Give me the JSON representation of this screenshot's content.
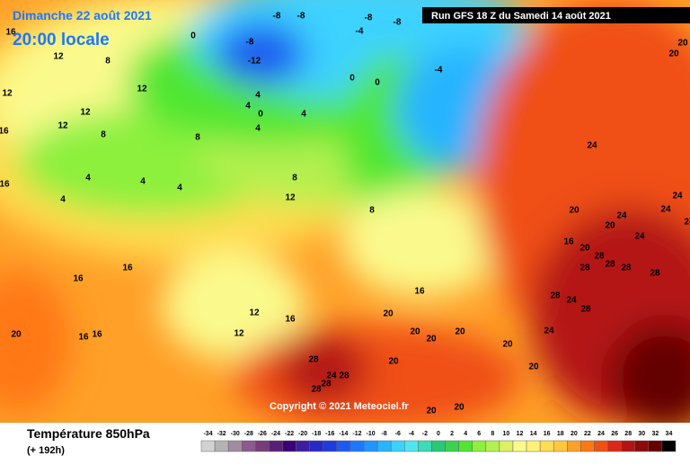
{
  "header": {
    "date": "Dimanche 22 août 2021",
    "time": "20:00 locale",
    "run": "Run GFS 18 Z du Samedi 14 août 2021"
  },
  "copyright": "Copyright © 2021 Meteociel.fr",
  "legend": {
    "title": "Température 850hPa",
    "lead": "(+ 192h)",
    "steps": [
      {
        "value": -34,
        "color": "#d2d2d2"
      },
      {
        "value": -32,
        "color": "#b4b4b4"
      },
      {
        "value": -30,
        "color": "#a08ca0"
      },
      {
        "value": -28,
        "color": "#8c5a8c"
      },
      {
        "value": -26,
        "color": "#783c78"
      },
      {
        "value": -24,
        "color": "#5a1e78"
      },
      {
        "value": -22,
        "color": "#3c0078"
      },
      {
        "value": -20,
        "color": "#3c1ea0"
      },
      {
        "value": -18,
        "color": "#2828c8"
      },
      {
        "value": -16,
        "color": "#1e3cdc"
      },
      {
        "value": -14,
        "color": "#1e5af0"
      },
      {
        "value": -12,
        "color": "#1e78ff"
      },
      {
        "value": -10,
        "color": "#1e96ff"
      },
      {
        "value": -8,
        "color": "#28b4ff"
      },
      {
        "value": -6,
        "color": "#3cd2ff"
      },
      {
        "value": -4,
        "color": "#50e6f0"
      },
      {
        "value": -2,
        "color": "#3cdcb4"
      },
      {
        "value": 0,
        "color": "#28c878"
      },
      {
        "value": 2,
        "color": "#3cd250"
      },
      {
        "value": 4,
        "color": "#50e632"
      },
      {
        "value": 6,
        "color": "#8cf03c"
      },
      {
        "value": 8,
        "color": "#b4f050"
      },
      {
        "value": 10,
        "color": "#dcf064"
      },
      {
        "value": 12,
        "color": "#fafa8c"
      },
      {
        "value": 14,
        "color": "#fff078"
      },
      {
        "value": 16,
        "color": "#ffdc50"
      },
      {
        "value": 18,
        "color": "#ffc83c"
      },
      {
        "value": 20,
        "color": "#ffa028"
      },
      {
        "value": 22,
        "color": "#ff7814"
      },
      {
        "value": 24,
        "color": "#f05014"
      },
      {
        "value": 26,
        "color": "#dc2814"
      },
      {
        "value": 28,
        "color": "#b41414"
      },
      {
        "value": 30,
        "color": "#8c0a0a"
      },
      {
        "value": 32,
        "color": "#640000"
      },
      {
        "value": 34,
        "color": "#000000"
      }
    ]
  },
  "contours": [
    16,
    12,
    8,
    12,
    12,
    12,
    12,
    8,
    16,
    4,
    4,
    4,
    16,
    4,
    8,
    4,
    4,
    0,
    4,
    8,
    12,
    4,
    0,
    0,
    -4,
    -8,
    -12,
    -8,
    -8,
    -8,
    -8,
    -4,
    0,
    8,
    16,
    16,
    16,
    16,
    20,
    12,
    12,
    16,
    16,
    20,
    20,
    20,
    20,
    20,
    20,
    20,
    20,
    28,
    24,
    28,
    28,
    28,
    20,
    24,
    24,
    24,
    24,
    20,
    20,
    24,
    24,
    16,
    20,
    28,
    28,
    28,
    28,
    28,
    28,
    24,
    28,
    24,
    20,
    20
  ]
}
